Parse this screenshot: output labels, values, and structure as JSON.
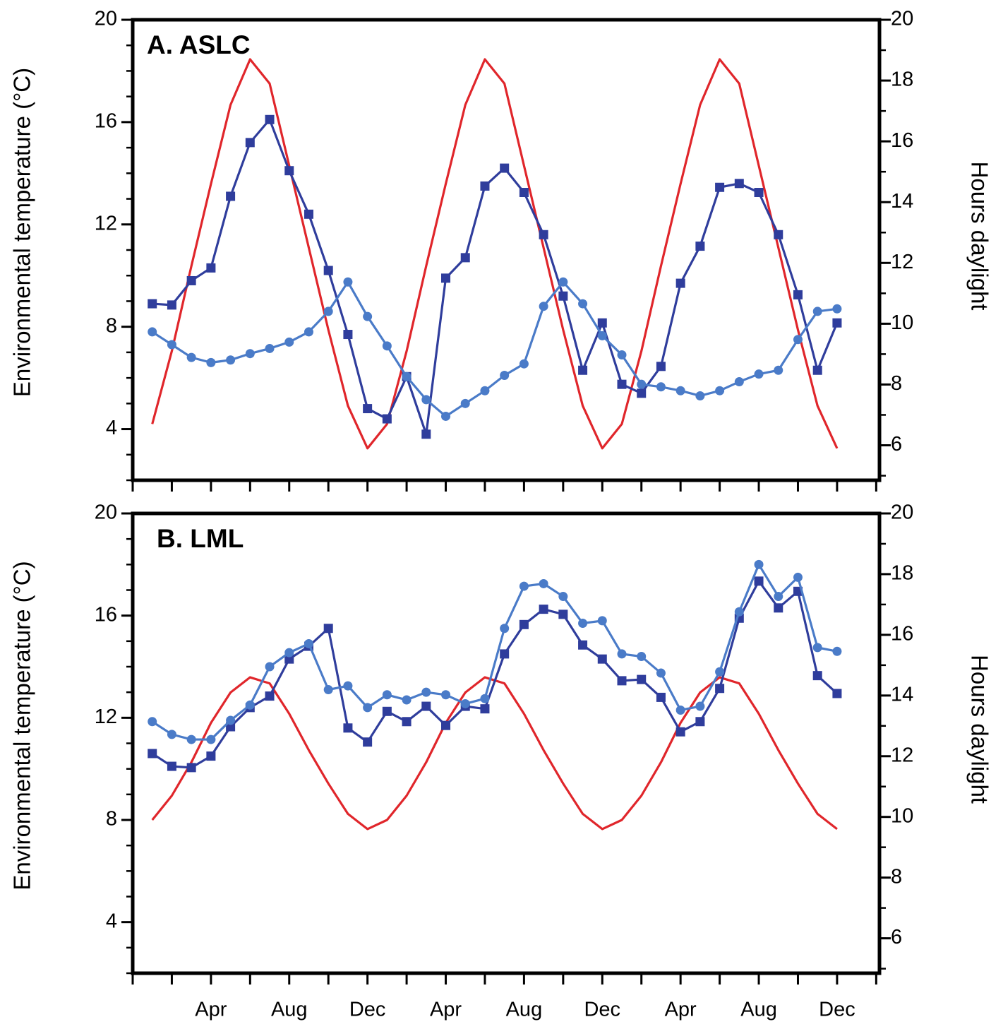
{
  "chart_data": [
    {
      "type": "line",
      "title": "A. ASLC",
      "ylabel": "Environmental temperature (°C)",
      "y2label": "Hours daylight",
      "categories": [
        null,
        null,
        null,
        null,
        null,
        null,
        null,
        null,
        null,
        null,
        null,
        null,
        null,
        null,
        null,
        null,
        null,
        null,
        null,
        null,
        null,
        null,
        null,
        null,
        null,
        null,
        null,
        null,
        null,
        null,
        null,
        null,
        null,
        null,
        null,
        null
      ],
      "ylim": [
        2,
        20
      ],
      "yticks": [
        4,
        8,
        12,
        16,
        20
      ],
      "y2lim": [
        4.85,
        20
      ],
      "y2ticks": [
        6,
        8,
        10,
        12,
        14,
        16,
        18,
        20
      ],
      "series": [
        {
          "color": "#e0262b",
          "axis": "y2",
          "values": [
            6.7,
            9.1,
            11.9,
            14.6,
            17.2,
            18.7,
            17.9,
            15.2,
            12.5,
            9.8,
            7.3,
            5.9,
            6.7,
            9.1,
            11.9,
            14.6,
            17.2,
            18.7,
            17.9,
            15.2,
            12.5,
            9.8,
            7.3,
            5.9,
            6.7,
            9.1,
            11.9,
            14.6,
            17.2,
            18.7,
            17.9,
            15.2,
            12.5,
            9.8,
            7.3,
            5.9
          ]
        },
        {
          "color": "#2f3d9c",
          "marker": "square",
          "values": [
            8.9,
            8.85,
            9.8,
            10.3,
            13.1,
            15.2,
            16.1,
            14.1,
            12.4,
            10.2,
            7.7,
            4.8,
            4.4,
            6.05,
            3.8,
            9.9,
            10.7,
            13.5,
            14.2,
            13.25,
            11.6,
            9.2,
            6.3,
            8.15,
            5.75,
            5.4,
            6.45,
            9.7,
            11.15,
            13.45,
            13.6,
            13.25,
            11.6,
            9.25,
            6.3,
            8.15
          ]
        },
        {
          "color": "#4a7bc8",
          "marker": "circle",
          "values": [
            7.8,
            7.3,
            6.8,
            6.6,
            6.7,
            6.95,
            7.15,
            7.4,
            7.8,
            8.6,
            9.75,
            8.4,
            7.25,
            6.05,
            5.15,
            4.5,
            5.0,
            5.5,
            6.1,
            6.55,
            8.8,
            9.75,
            8.9,
            7.65,
            6.9,
            5.75,
            5.65,
            5.5,
            5.3,
            5.5,
            5.85,
            6.15,
            6.3,
            7.5,
            8.6,
            8.7
          ]
        }
      ]
    },
    {
      "type": "line",
      "title": "B. LML",
      "ylabel": "Environmental temperature (°C)",
      "y2label": "Hours daylight",
      "categories": [
        null,
        null,
        null,
        "Apr",
        null,
        null,
        null,
        "Aug",
        null,
        null,
        null,
        "Dec",
        null,
        null,
        null,
        "Apr",
        null,
        null,
        null,
        "Aug",
        null,
        null,
        null,
        "Dec",
        null,
        null,
        null,
        "Apr",
        null,
        null,
        null,
        "Aug",
        null,
        null,
        null,
        "Dec"
      ],
      "ylim": [
        2,
        20
      ],
      "yticks": [
        4,
        8,
        12,
        16,
        20
      ],
      "y2lim": [
        4.85,
        20
      ],
      "y2ticks": [
        6,
        8,
        10,
        12,
        14,
        16,
        18,
        20
      ],
      "series": [
        {
          "color": "#e0262b",
          "axis": "y2",
          "values": [
            9.9,
            10.7,
            11.8,
            13.1,
            14.1,
            14.6,
            14.4,
            13.4,
            12.2,
            11.1,
            10.1,
            9.6,
            9.9,
            10.7,
            11.8,
            13.1,
            14.1,
            14.6,
            14.4,
            13.4,
            12.2,
            11.1,
            10.1,
            9.6,
            9.9,
            10.7,
            11.8,
            13.1,
            14.1,
            14.6,
            14.4,
            13.4,
            12.2,
            11.1,
            10.1,
            9.6
          ]
        },
        {
          "color": "#2f3d9c",
          "marker": "square",
          "values": [
            10.6,
            10.1,
            10.05,
            10.5,
            11.65,
            12.4,
            12.85,
            14.3,
            14.8,
            15.5,
            11.6,
            11.05,
            12.25,
            11.85,
            12.45,
            11.7,
            12.45,
            12.35,
            14.5,
            15.65,
            16.25,
            16.05,
            14.85,
            14.3,
            13.45,
            13.5,
            12.8,
            11.45,
            11.85,
            13.15,
            15.9,
            17.35,
            16.3,
            16.95,
            13.65,
            12.95
          ]
        },
        {
          "color": "#4a7bc8",
          "marker": "circle",
          "values": [
            11.85,
            11.35,
            11.15,
            11.15,
            11.9,
            12.5,
            14.0,
            14.55,
            14.9,
            13.1,
            13.25,
            12.4,
            12.9,
            12.7,
            13.0,
            12.9,
            12.55,
            12.75,
            15.5,
            17.15,
            17.25,
            16.75,
            15.7,
            15.8,
            14.5,
            14.4,
            13.75,
            12.3,
            12.45,
            13.8,
            16.15,
            18.0,
            16.75,
            17.5,
            14.75,
            14.6
          ]
        }
      ]
    }
  ]
}
